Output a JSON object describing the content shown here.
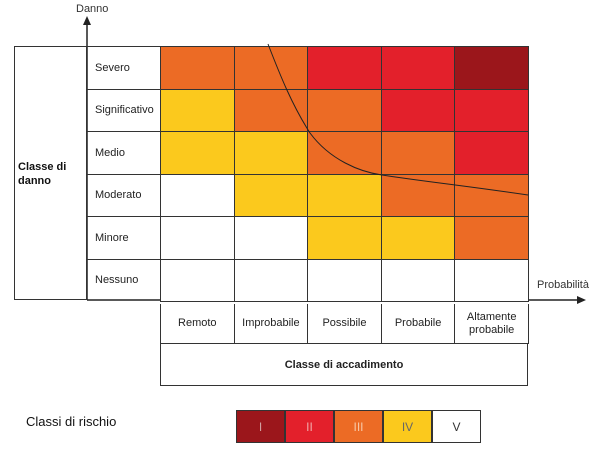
{
  "axes": {
    "y_title": "Danno",
    "x_title": "Probabilità"
  },
  "left_title": "Classe di danno",
  "rows": [
    "Severo",
    "Significativo",
    "Medio",
    "Moderato",
    "Minore",
    "Nessuno"
  ],
  "columns": [
    "Remoto",
    "Improbabile",
    "Possibile",
    "Probabile",
    "Altamente probabile"
  ],
  "bottom_title": "Classe di accadimento",
  "matrix": [
    [
      "III",
      "III",
      "II",
      "II",
      "I"
    ],
    [
      "IV",
      "III",
      "III",
      "II",
      "II"
    ],
    [
      "IV",
      "IV",
      "III",
      "III",
      "II"
    ],
    [
      "V",
      "IV",
      "IV",
      "III",
      "III"
    ],
    [
      "V",
      "V",
      "IV",
      "IV",
      "III"
    ],
    [
      "V",
      "V",
      "V",
      "V",
      "V"
    ]
  ],
  "legend": {
    "title": "Classi di rischio",
    "items": [
      {
        "label": "I",
        "color": "#9b161b",
        "text_color": "#d0a0a0"
      },
      {
        "label": "II",
        "color": "#e3202b",
        "text_color": "#f0a8a8"
      },
      {
        "label": "III",
        "color": "#ec6b25",
        "text_color": "#f7c7a6"
      },
      {
        "label": "IV",
        "color": "#fbc91d",
        "text_color": "#666666"
      },
      {
        "label": "V",
        "color": "#ffffff",
        "text_color": "#333333"
      }
    ]
  }
}
